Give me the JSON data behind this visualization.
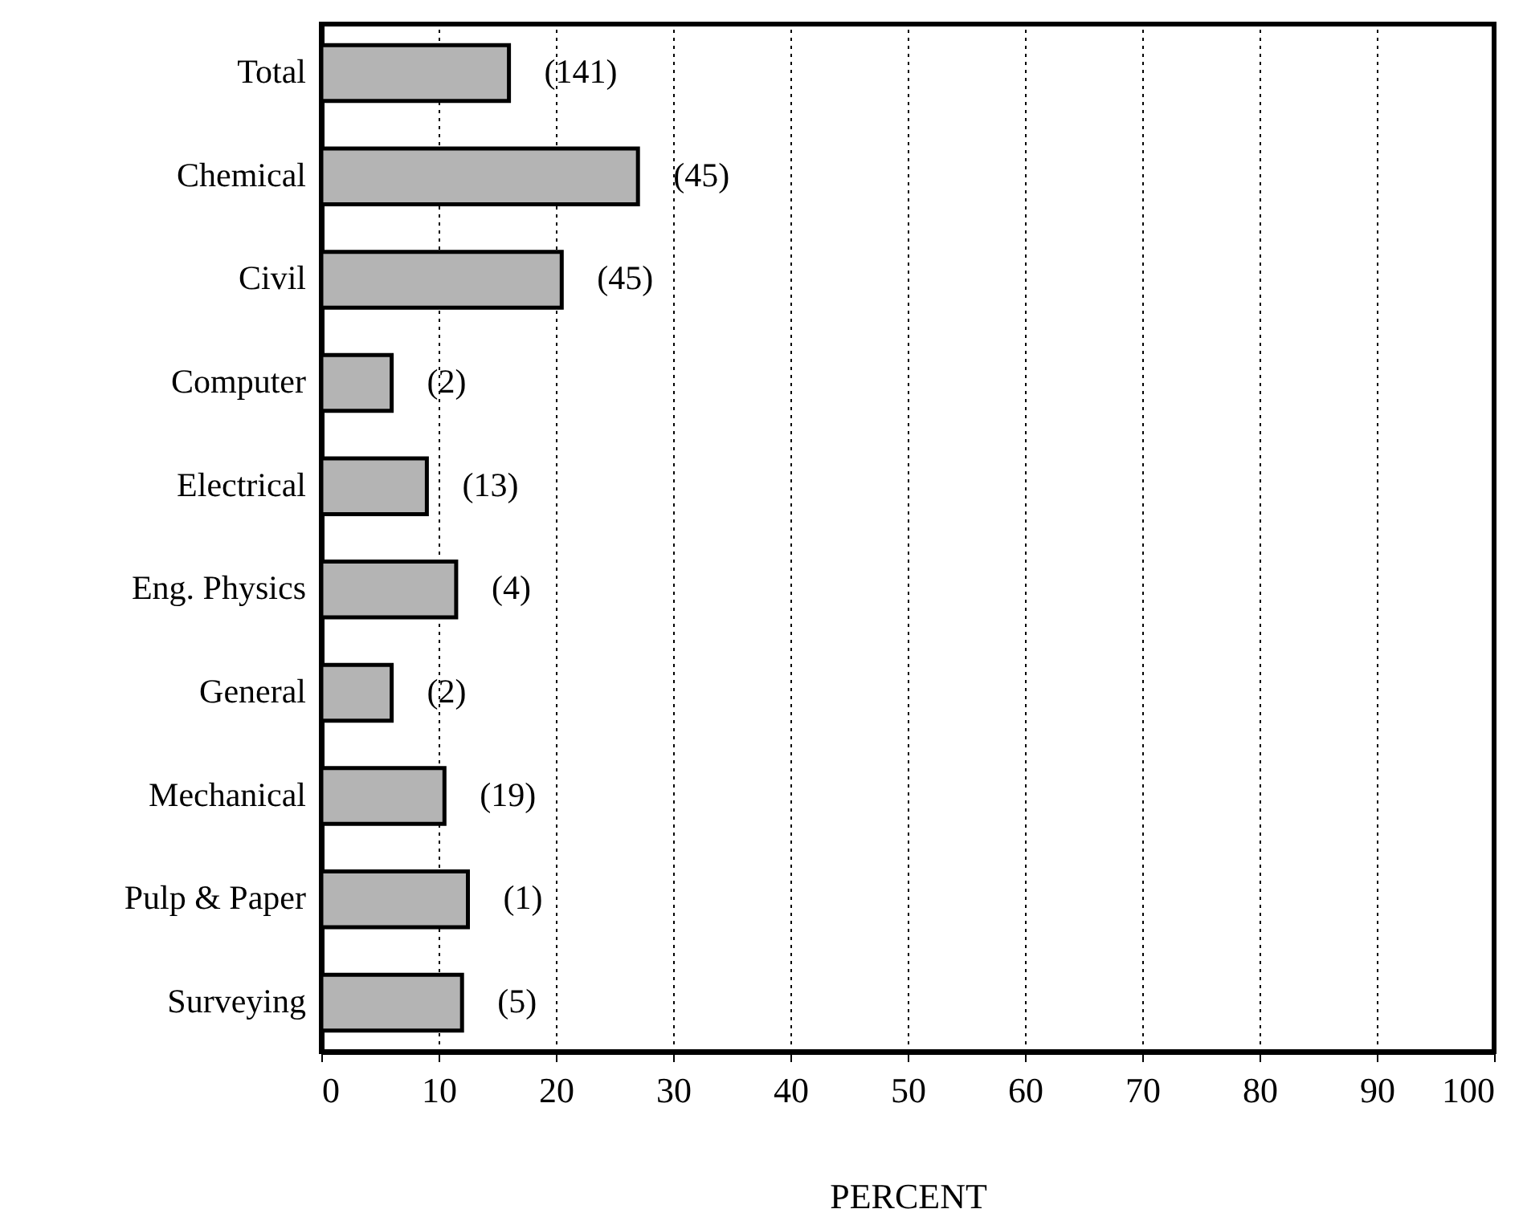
{
  "chart_data": {
    "type": "bar",
    "orientation": "horizontal",
    "xlabel": "PERCENT",
    "categories": [
      "Total",
      "Chemical",
      "Civil",
      "Computer",
      "Electrical",
      "Eng. Physics",
      "General",
      "Mechanical",
      "Pulp & Paper",
      "Surveying"
    ],
    "values": [
      16,
      27,
      20.5,
      6,
      9,
      11.5,
      6,
      10.5,
      12.5,
      12
    ],
    "annotations": [
      "(141)",
      "(45)",
      "(45)",
      "(2)",
      "(13)",
      "(4)",
      "(2)",
      "(19)",
      "(1)",
      "(5)"
    ],
    "color": "#b4b4b4",
    "xlim": [
      0,
      100
    ],
    "xticks": [
      0,
      10,
      20,
      30,
      40,
      50,
      60,
      70,
      80,
      90,
      100
    ],
    "grid": "x"
  }
}
